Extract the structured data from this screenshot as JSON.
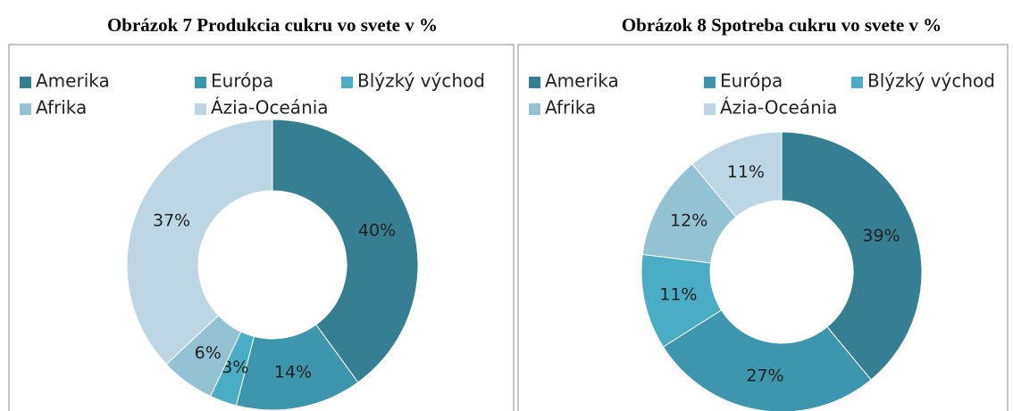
{
  "chart_data": [
    {
      "type": "donut",
      "title": "Obrázok 7 Produkcia cukru vo svete v %",
      "categories": [
        "Amerika",
        "Európa",
        "Blýzký východ",
        "Afrika",
        "Ázia-Oceánia"
      ],
      "values": [
        40,
        14,
        3,
        6,
        37
      ],
      "value_labels": [
        "40%",
        "14%",
        "3%",
        "6%",
        "37%"
      ],
      "colors": [
        "#367f93",
        "#3d96ad",
        "#4bacc6",
        "#93c3d3",
        "#bcd7e3"
      ],
      "legend": "top"
    },
    {
      "type": "donut",
      "title": "Obrázok 8 Spotreba cukru vo svete v %",
      "categories": [
        "Amerika",
        "Európa",
        "Blýzký východ",
        "Afrika",
        "Ázia-Oceánia"
      ],
      "values": [
        39,
        27,
        11,
        12,
        11
      ],
      "value_labels": [
        "39%",
        "27%",
        "11%",
        "12%",
        "11%"
      ],
      "colors": [
        "#367f93",
        "#3d96ad",
        "#4bacc6",
        "#93c3d3",
        "#bcd7e3"
      ],
      "legend": "top"
    }
  ]
}
